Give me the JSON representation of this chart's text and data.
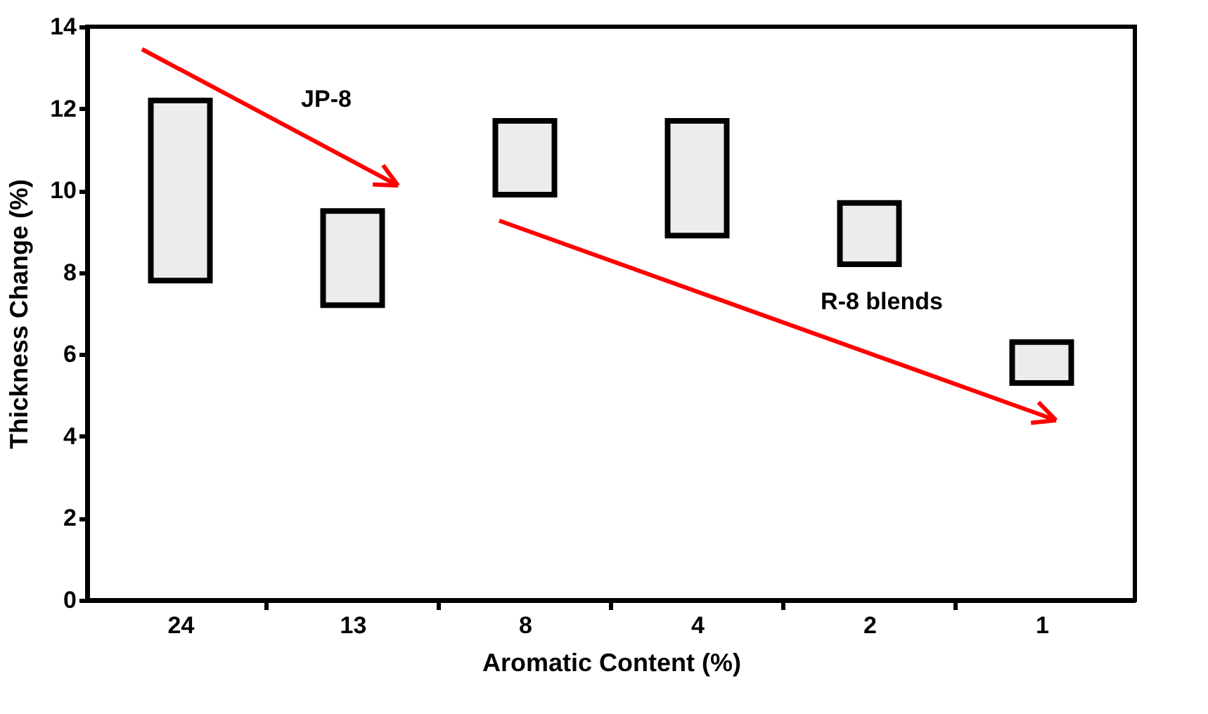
{
  "chart_data": {
    "type": "bar",
    "xlabel": "Aromatic Content (%)",
    "ylabel": "Thickness Change (%)",
    "categories": [
      "24",
      "13",
      "8",
      "4",
      "2",
      "1"
    ],
    "base": [
      7.8,
      7.2,
      9.9,
      8.9,
      8.2,
      5.3
    ],
    "values": [
      4.4,
      2.3,
      1.8,
      2.8,
      1.5,
      1.0
    ],
    "color": "#ececec",
    "ylim": [
      0,
      14
    ],
    "yticks": [
      0,
      2,
      4,
      6,
      8,
      10,
      12,
      14
    ],
    "grid": false,
    "annotations": [
      "JP-8",
      "R-8 blends"
    ]
  }
}
